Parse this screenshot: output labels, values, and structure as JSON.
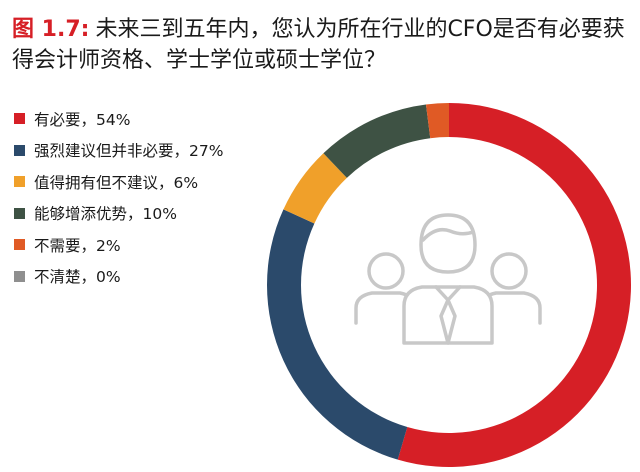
{
  "title": {
    "figure_label": "图 1.7:",
    "text": "未来三到五年内，您认为所在行业的CFO是否有必要获得会计师资格、学士学位或硕士学位？"
  },
  "chart_data": {
    "type": "pie",
    "style": "donut",
    "start_angle_deg": 0,
    "direction": "clockwise",
    "legend_position": "left",
    "center_icon": "group-of-people-icon",
    "series": [
      {
        "labels": [
          "有必要",
          "强烈建议但并非必要",
          "值得拥有但不建议",
          "能够增添优势",
          "不需要",
          "不清楚"
        ],
        "values": [
          54,
          27,
          6,
          10,
          2,
          0
        ],
        "colors": [
          "#d61f26",
          "#2b4a6b",
          "#f0a02a",
          "#3e5244",
          "#e05a25",
          "#8f8f8f"
        ],
        "legend_text": [
          "有必要，54%",
          "强烈建议但并非必要，27%",
          "值得拥有但不建议，6%",
          "能够增添优势，10%",
          "不需要，2%",
          "不清楚，0%"
        ]
      }
    ]
  }
}
